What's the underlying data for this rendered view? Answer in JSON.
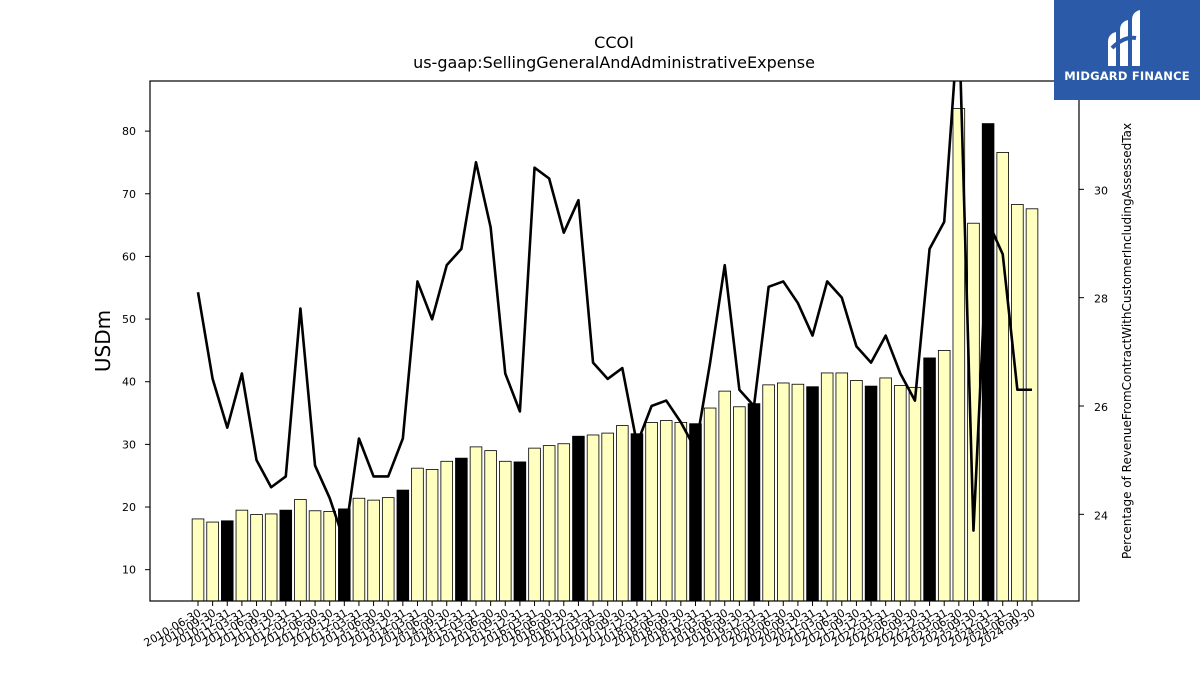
{
  "chart_data": {
    "type": "bar",
    "title": "CCOI",
    "subtitle": "us-gaap:SellingGeneralAndAdministrativeExpense",
    "ylabel": "USDm",
    "y2label": "Percentage of RevenueFromContractWithCustomerIncludingAssessedTax",
    "ylim": [
      5,
      88
    ],
    "y2lim": [
      22.4,
      32
    ],
    "yticks": [
      10,
      20,
      30,
      40,
      50,
      60,
      70,
      80
    ],
    "y2ticks": [
      24,
      26,
      28,
      30
    ],
    "categories": [
      "2010-06-30",
      "2010-09-30",
      "2010-12-31",
      "2011-03-31",
      "2011-06-30",
      "2011-09-30",
      "2011-12-31",
      "2012-03-31",
      "2012-06-30",
      "2012-09-30",
      "2012-12-31",
      "2013-03-31",
      "2013-06-30",
      "2013-09-30",
      "2013-12-31",
      "2014-03-31",
      "2014-06-30",
      "2014-09-30",
      "2014-12-31",
      "2015-03-31",
      "2015-06-30",
      "2015-09-30",
      "2015-12-31",
      "2016-03-31",
      "2016-06-30",
      "2016-09-30",
      "2016-12-31",
      "2017-03-31",
      "2017-06-30",
      "2017-09-30",
      "2017-12-31",
      "2018-03-31",
      "2018-06-30",
      "2018-09-30",
      "2018-12-31",
      "2019-03-31",
      "2019-06-30",
      "2019-09-30",
      "2019-12-31",
      "2020-03-31",
      "2020-06-30",
      "2020-09-30",
      "2020-12-31",
      "2021-03-31",
      "2021-06-30",
      "2021-09-30",
      "2021-12-31",
      "2022-03-31",
      "2022-06-30",
      "2022-09-30",
      "2022-12-31",
      "2023-03-31",
      "2023-06-30",
      "2023-09-30",
      "2023-12-31",
      "2024-03-31",
      "2024-06-30",
      "2024-09-30"
    ],
    "series": [
      {
        "type": "bar",
        "values": [
          18.1,
          17.6,
          17.8,
          19.5,
          18.8,
          18.9,
          19.5,
          21.2,
          19.4,
          19.3,
          19.7,
          21.4,
          21.1,
          21.5,
          22.7,
          26.2,
          26.0,
          27.3,
          27.8,
          29.6,
          29.0,
          27.3,
          27.2,
          29.4,
          29.8,
          30.1,
          31.3,
          31.5,
          31.8,
          33.0,
          31.7,
          33.5,
          33.8,
          33.5,
          33.3,
          35.8,
          38.5,
          36.0,
          36.5,
          39.5,
          39.8,
          39.6,
          39.2,
          41.4,
          41.4,
          40.2,
          39.3,
          40.6,
          39.4,
          39.1,
          43.8,
          45.0,
          83.6,
          65.3,
          81.2,
          76.6,
          68.3,
          67.6
        ],
        "highlight": [
          false,
          false,
          true,
          false,
          false,
          false,
          true,
          false,
          false,
          false,
          true,
          false,
          false,
          false,
          true,
          false,
          false,
          false,
          true,
          false,
          false,
          false,
          true,
          false,
          false,
          false,
          true,
          false,
          false,
          false,
          true,
          false,
          false,
          false,
          true,
          false,
          false,
          false,
          true,
          false,
          false,
          false,
          true,
          false,
          false,
          false,
          true,
          false,
          false,
          false,
          true,
          false,
          false,
          false,
          true,
          false,
          false,
          false
        ]
      },
      {
        "type": "line",
        "axis": "right",
        "values": [
          28.1,
          26.5,
          25.6,
          26.6,
          25.0,
          24.5,
          24.7,
          27.8,
          24.9,
          24.3,
          23.5,
          25.4,
          24.7,
          24.7,
          25.4,
          28.3,
          27.6,
          28.6,
          28.9,
          30.5,
          29.3,
          26.6,
          25.9,
          30.4,
          30.2,
          29.2,
          29.8,
          26.8,
          26.5,
          26.7,
          25.3,
          26.0,
          26.1,
          25.7,
          25.2,
          26.8,
          28.6,
          26.3,
          26.0,
          28.2,
          28.3,
          27.9,
          27.3,
          28.3,
          28.0,
          27.1,
          26.8,
          27.3,
          26.6,
          26.1,
          28.9,
          29.4,
          33.2,
          23.7,
          29.4,
          28.8,
          26.3,
          26.3
        ]
      }
    ],
    "colors": {
      "bar_fill": "#ffffc0",
      "bar_highlight": "#000000",
      "bar_edge": "#000000",
      "line": "#000000"
    },
    "grid": false,
    "legend": "none"
  },
  "logo": {
    "name": "MIDGARD FINANCE",
    "icon": "midgard-logo-icon",
    "color": "#2b5aa8"
  }
}
